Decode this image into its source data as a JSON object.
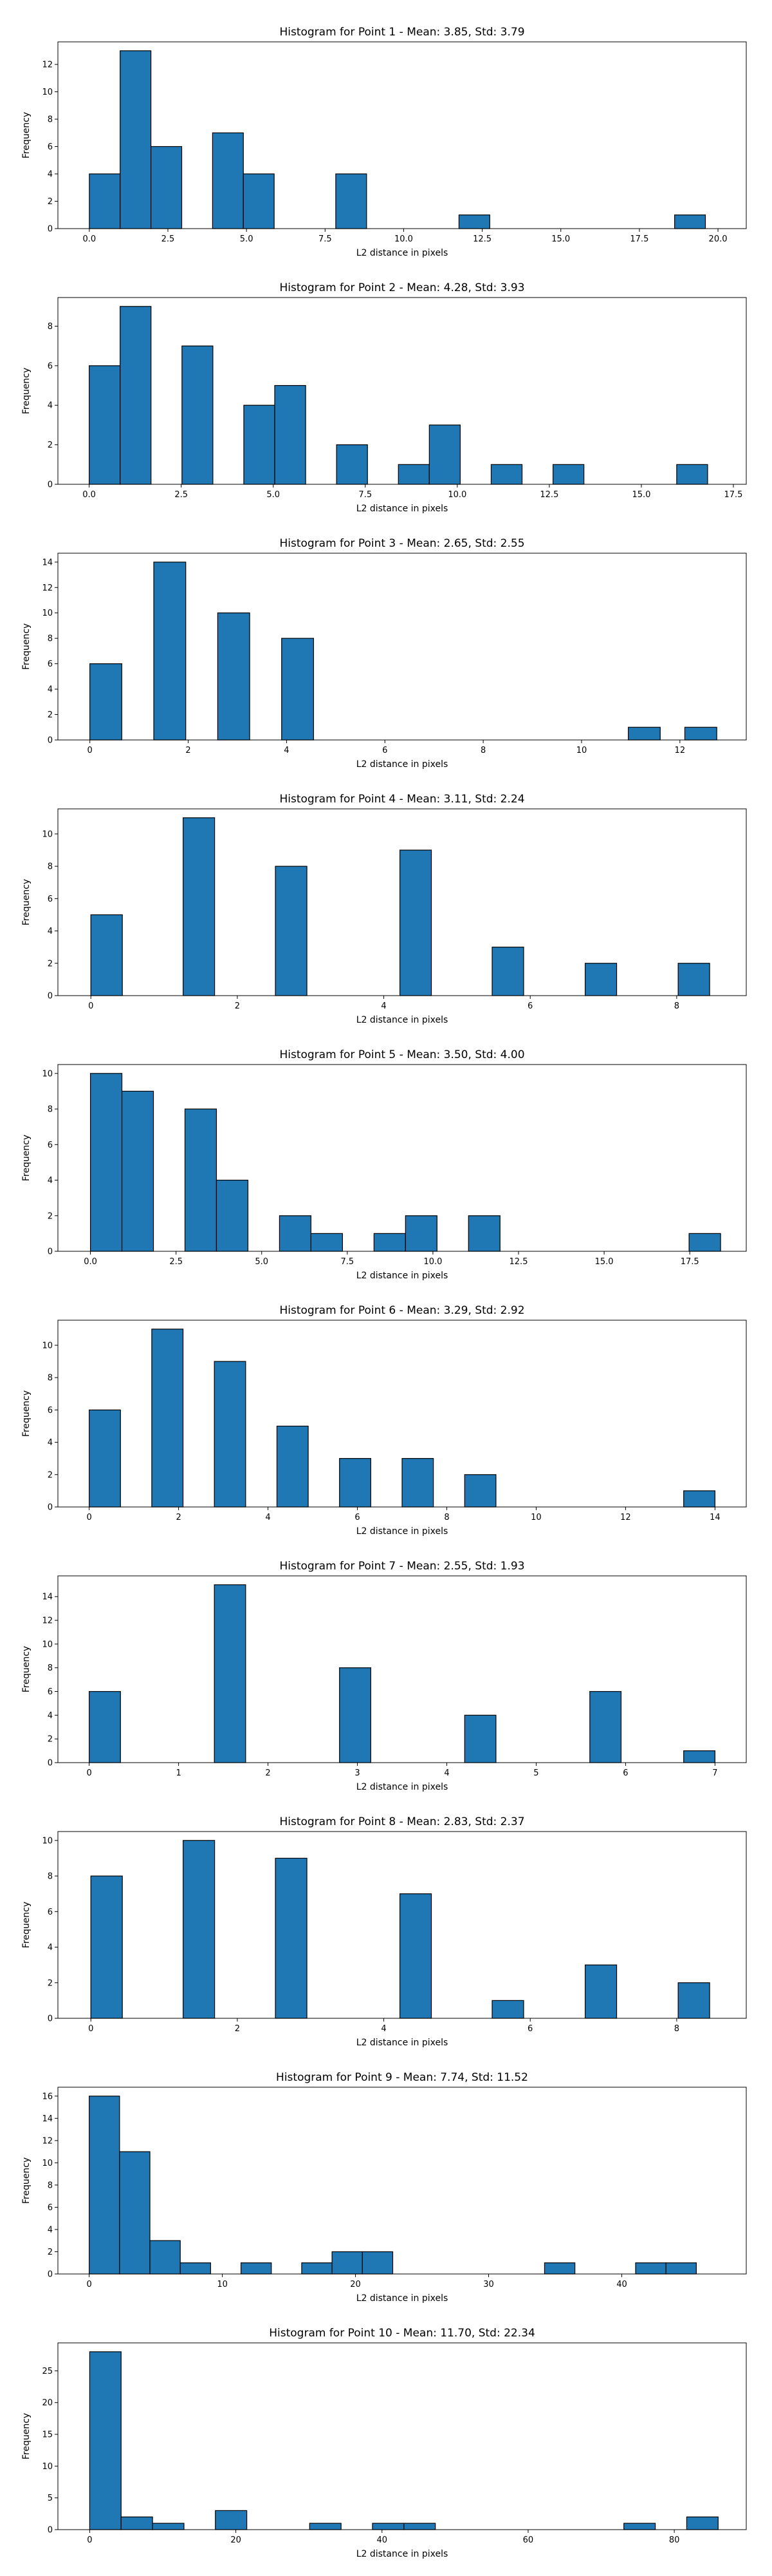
{
  "colors": {
    "bar": "#1f77b4",
    "edge": "#000000",
    "background": "#ffffff"
  },
  "chart_data": [
    {
      "type": "bar",
      "title": "Histogram for Point 1 - Mean: 3.85, Std: 3.79",
      "xlabel": "L2 distance in pixels",
      "ylabel": "Frequency",
      "xlim": [
        -1.0,
        20.9
      ],
      "ylim": [
        0,
        13.65
      ],
      "bin_width": 0.98,
      "xticks": [
        0.0,
        2.5,
        5.0,
        7.5,
        10.0,
        12.5,
        15.0,
        17.5,
        20.0
      ],
      "xticklabels": [
        "0.0",
        "2.5",
        "5.0",
        "7.5",
        "10.0",
        "12.5",
        "15.0",
        "17.5",
        "20.0"
      ],
      "yticks": [
        0,
        2,
        4,
        6,
        8,
        10,
        12
      ],
      "bins": [
        {
          "x": 0.0,
          "count": 4
        },
        {
          "x": 0.98,
          "count": 13
        },
        {
          "x": 1.96,
          "count": 6
        },
        {
          "x": 3.92,
          "count": 7
        },
        {
          "x": 4.9,
          "count": 4
        },
        {
          "x": 7.84,
          "count": 4
        },
        {
          "x": 11.76,
          "count": 1
        },
        {
          "x": 18.62,
          "count": 1
        }
      ]
    },
    {
      "type": "bar",
      "title": "Histogram for Point 2 - Mean: 4.28, Std: 3.93",
      "xlabel": "L2 distance in pixels",
      "ylabel": "Frequency",
      "xlim": [
        -0.85,
        17.85
      ],
      "ylim": [
        0,
        9.45
      ],
      "bin_width": 0.84,
      "xticks": [
        0.0,
        2.5,
        5.0,
        7.5,
        10.0,
        12.5,
        15.0,
        17.5
      ],
      "xticklabels": [
        "0.0",
        "2.5",
        "5.0",
        "7.5",
        "10.0",
        "12.5",
        "15.0",
        "17.5"
      ],
      "yticks": [
        0,
        2,
        4,
        6,
        8
      ],
      "bins": [
        {
          "x": 0.0,
          "count": 6
        },
        {
          "x": 0.84,
          "count": 9
        },
        {
          "x": 2.52,
          "count": 7
        },
        {
          "x": 4.2,
          "count": 4
        },
        {
          "x": 5.04,
          "count": 5
        },
        {
          "x": 6.72,
          "count": 2
        },
        {
          "x": 8.4,
          "count": 1
        },
        {
          "x": 9.24,
          "count": 3
        },
        {
          "x": 10.92,
          "count": 1
        },
        {
          "x": 12.6,
          "count": 1
        },
        {
          "x": 15.96,
          "count": 1
        }
      ]
    },
    {
      "type": "bar",
      "title": "Histogram for Point 3 - Mean: 2.65, Std: 2.55",
      "xlabel": "L2 distance in pixels",
      "ylabel": "Frequency",
      "xlim": [
        -0.65,
        13.35
      ],
      "ylim": [
        0,
        14.7
      ],
      "bin_width": 0.65,
      "xticks": [
        0,
        2,
        4,
        6,
        8,
        10,
        12
      ],
      "xticklabels": [
        "0",
        "2",
        "4",
        "6",
        "8",
        "10",
        "12"
      ],
      "yticks": [
        0,
        2,
        4,
        6,
        8,
        10,
        12,
        14
      ],
      "bins": [
        {
          "x": 0.0,
          "count": 6
        },
        {
          "x": 1.3,
          "count": 14
        },
        {
          "x": 2.6,
          "count": 10
        },
        {
          "x": 3.9,
          "count": 8
        },
        {
          "x": 10.95,
          "count": 1
        },
        {
          "x": 12.1,
          "count": 1
        }
      ]
    },
    {
      "type": "bar",
      "title": "Histogram for Point 4 - Mean: 3.11, Std: 2.24",
      "xlabel": "L2 distance in pixels",
      "ylabel": "Frequency",
      "xlim": [
        -0.45,
        8.95
      ],
      "ylim": [
        0,
        11.55
      ],
      "bin_width": 0.43,
      "xticks": [
        0,
        2,
        4,
        6,
        8
      ],
      "xticklabels": [
        "0",
        "2",
        "4",
        "6",
        "8"
      ],
      "yticks": [
        0,
        2,
        4,
        6,
        8,
        10
      ],
      "bins": [
        {
          "x": 0.0,
          "count": 5
        },
        {
          "x": 1.26,
          "count": 11
        },
        {
          "x": 2.52,
          "count": 8
        },
        {
          "x": 4.22,
          "count": 9
        },
        {
          "x": 5.48,
          "count": 3
        },
        {
          "x": 6.75,
          "count": 2
        },
        {
          "x": 8.02,
          "count": 2
        }
      ]
    },
    {
      "type": "bar",
      "title": "Histogram for Point 5 - Mean: 3.50, Std: 4.00",
      "xlabel": "L2 distance in pixels",
      "ylabel": "Frequency",
      "xlim": [
        -0.95,
        19.15
      ],
      "ylim": [
        0,
        10.5
      ],
      "bin_width": 0.92,
      "xticks": [
        0.0,
        2.5,
        5.0,
        7.5,
        10.0,
        12.5,
        15.0,
        17.5
      ],
      "xticklabels": [
        "0.0",
        "2.5",
        "5.0",
        "7.5",
        "10.0",
        "12.5",
        "15.0",
        "17.5"
      ],
      "yticks": [
        0,
        2,
        4,
        6,
        8,
        10
      ],
      "bins": [
        {
          "x": 0.0,
          "count": 10
        },
        {
          "x": 0.92,
          "count": 9
        },
        {
          "x": 2.76,
          "count": 8
        },
        {
          "x": 3.68,
          "count": 4
        },
        {
          "x": 5.52,
          "count": 2
        },
        {
          "x": 6.44,
          "count": 1
        },
        {
          "x": 8.28,
          "count": 1
        },
        {
          "x": 9.2,
          "count": 2
        },
        {
          "x": 11.04,
          "count": 2
        },
        {
          "x": 17.48,
          "count": 1
        }
      ]
    },
    {
      "type": "bar",
      "title": "Histogram for Point 6 - Mean: 3.29, Std: 2.92",
      "xlabel": "L2 distance in pixels",
      "ylabel": "Frequency",
      "xlim": [
        -0.7,
        14.7
      ],
      "ylim": [
        0,
        11.55
      ],
      "bin_width": 0.7,
      "xticks": [
        0,
        2,
        4,
        6,
        8,
        10,
        12,
        14
      ],
      "xticklabels": [
        "0",
        "2",
        "4",
        "6",
        "8",
        "10",
        "12",
        "14"
      ],
      "yticks": [
        0,
        2,
        4,
        6,
        8,
        10
      ],
      "bins": [
        {
          "x": 0.0,
          "count": 6
        },
        {
          "x": 1.4,
          "count": 11
        },
        {
          "x": 2.8,
          "count": 9
        },
        {
          "x": 4.2,
          "count": 5
        },
        {
          "x": 5.6,
          "count": 3
        },
        {
          "x": 7.0,
          "count": 3
        },
        {
          "x": 8.4,
          "count": 2
        },
        {
          "x": 13.3,
          "count": 1
        }
      ]
    },
    {
      "type": "bar",
      "title": "Histogram for Point 7 - Mean: 2.55, Std: 1.93",
      "xlabel": "L2 distance in pixels",
      "ylabel": "Frequency",
      "xlim": [
        -0.35,
        7.35
      ],
      "ylim": [
        0,
        15.75
      ],
      "bin_width": 0.35,
      "xticks": [
        0,
        1,
        2,
        3,
        4,
        5,
        6,
        7
      ],
      "xticklabels": [
        "0",
        "1",
        "2",
        "3",
        "4",
        "5",
        "6",
        "7"
      ],
      "yticks": [
        0,
        2,
        4,
        6,
        8,
        10,
        12,
        14
      ],
      "bins": [
        {
          "x": 0.0,
          "count": 6
        },
        {
          "x": 1.4,
          "count": 15
        },
        {
          "x": 2.8,
          "count": 8
        },
        {
          "x": 4.2,
          "count": 4
        },
        {
          "x": 5.6,
          "count": 6
        },
        {
          "x": 6.65,
          "count": 1
        }
      ]
    },
    {
      "type": "bar",
      "title": "Histogram for Point 8 - Mean: 2.83, Std: 2.37",
      "xlabel": "L2 distance in pixels",
      "ylabel": "Frequency",
      "xlim": [
        -0.45,
        8.95
      ],
      "ylim": [
        0,
        10.5
      ],
      "bin_width": 0.43,
      "xticks": [
        0,
        2,
        4,
        6,
        8
      ],
      "xticklabels": [
        "0",
        "2",
        "4",
        "6",
        "8"
      ],
      "yticks": [
        0,
        2,
        4,
        6,
        8,
        10
      ],
      "bins": [
        {
          "x": 0.0,
          "count": 8
        },
        {
          "x": 1.26,
          "count": 10
        },
        {
          "x": 2.52,
          "count": 9
        },
        {
          "x": 4.22,
          "count": 7
        },
        {
          "x": 5.48,
          "count": 1
        },
        {
          "x": 6.75,
          "count": 3
        },
        {
          "x": 8.02,
          "count": 2
        }
      ]
    },
    {
      "type": "bar",
      "title": "Histogram for Point 9 - Mean: 7.74, Std: 11.52",
      "xlabel": "L2 distance in pixels",
      "ylabel": "Frequency",
      "xlim": [
        -2.35,
        49.35
      ],
      "ylim": [
        0,
        16.8
      ],
      "bin_width": 2.28,
      "xticks": [
        0,
        10,
        20,
        30,
        40
      ],
      "xticklabels": [
        "0",
        "10",
        "20",
        "30",
        "40"
      ],
      "yticks": [
        0,
        2,
        4,
        6,
        8,
        10,
        12,
        14,
        16
      ],
      "bins": [
        {
          "x": 0.0,
          "count": 16
        },
        {
          "x": 2.28,
          "count": 11
        },
        {
          "x": 4.56,
          "count": 3
        },
        {
          "x": 6.84,
          "count": 1
        },
        {
          "x": 11.4,
          "count": 1
        },
        {
          "x": 15.96,
          "count": 1
        },
        {
          "x": 18.24,
          "count": 2
        },
        {
          "x": 20.52,
          "count": 2
        },
        {
          "x": 34.2,
          "count": 1
        },
        {
          "x": 41.04,
          "count": 1
        },
        {
          "x": 43.32,
          "count": 1
        }
      ]
    },
    {
      "type": "bar",
      "title": "Histogram for Point 10 - Mean: 11.70, Std: 22.34",
      "xlabel": "L2 distance in pixels",
      "ylabel": "Frequency",
      "xlim": [
        -4.35,
        89.85
      ],
      "ylim": [
        0,
        29.4
      ],
      "bin_width": 4.3,
      "xticks": [
        0,
        20,
        40,
        60,
        80
      ],
      "xticklabels": [
        "0",
        "20",
        "40",
        "60",
        "80"
      ],
      "yticks": [
        0,
        5,
        10,
        15,
        20,
        25
      ],
      "bins": [
        {
          "x": 0.0,
          "count": 28
        },
        {
          "x": 4.3,
          "count": 2
        },
        {
          "x": 8.6,
          "count": 1
        },
        {
          "x": 17.2,
          "count": 3
        },
        {
          "x": 30.1,
          "count": 1
        },
        {
          "x": 38.7,
          "count": 1
        },
        {
          "x": 43.0,
          "count": 1
        },
        {
          "x": 73.1,
          "count": 1
        },
        {
          "x": 81.7,
          "count": 2
        }
      ]
    }
  ]
}
